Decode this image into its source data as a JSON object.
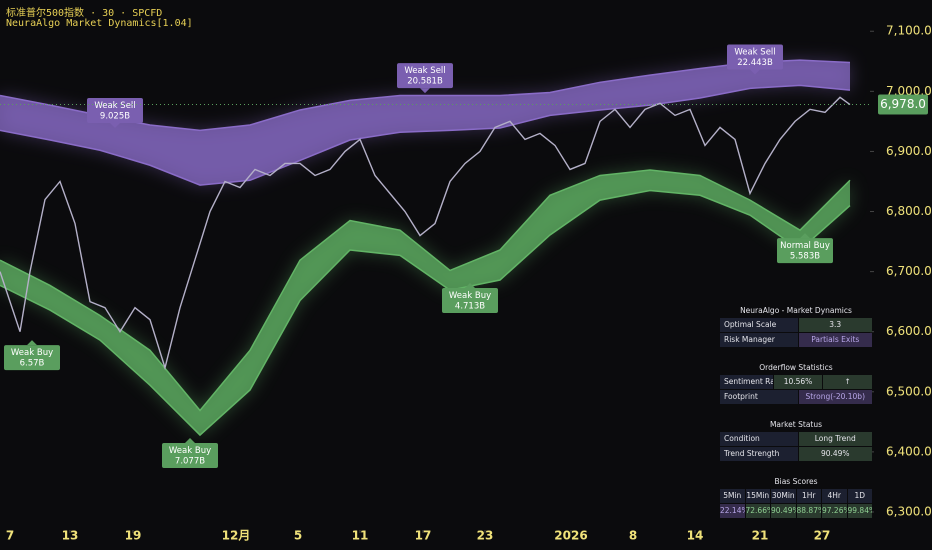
{
  "header": {
    "title": "标准普尔500指数 · 30 · SPCFD",
    "indicator": "NeuraAlgo Market Dynamics[1.04]"
  },
  "chart_data": {
    "type": "line",
    "x": [
      0,
      1,
      2,
      3,
      4.5,
      6,
      7.5,
      9,
      10.5,
      12,
      13.5,
      15,
      16.5,
      18,
      19.5,
      21,
      22.5,
      24,
      25.5,
      27,
      28.5,
      30,
      31.5,
      33,
      34.5,
      36,
      37.5,
      39,
      40.5,
      42,
      43.5,
      45,
      46.5,
      48,
      49.5,
      51,
      52.5,
      54,
      55.5,
      57,
      58.5,
      60,
      61.5,
      63,
      64.5,
      66,
      67.5,
      69,
      70.5,
      72,
      73.5,
      75,
      76.5,
      78,
      79.5,
      81,
      82.5,
      84,
      85
    ],
    "series": [
      {
        "color": "#b4b0c8",
        "values": [
          6700,
          6650,
          6600,
          6700,
          6820,
          6850,
          6780,
          6650,
          6640,
          6600,
          6640,
          6620,
          6540,
          6640,
          6720,
          6800,
          6850,
          6840,
          6870,
          6860,
          6880,
          6880,
          6860,
          6870,
          6900,
          6920,
          6860,
          6830,
          6800,
          6760,
          6780,
          6850,
          6880,
          6900,
          6940,
          6950,
          6920,
          6930,
          6910,
          6870,
          6880,
          6950,
          6970,
          6940,
          6970,
          6980,
          6960,
          6970,
          6910,
          6940,
          6920,
          6830,
          6880,
          6920,
          6950,
          6970,
          6965,
          6990,
          6978
        ]
      }
    ],
    "bands": [
      {
        "color": "#8a6cc8",
        "x": [
          0,
          5,
          10,
          15,
          20,
          25,
          30,
          35,
          40,
          45,
          50,
          55,
          60,
          65,
          70,
          75,
          80,
          85
        ],
        "upper": [
          6993,
          6977,
          6960,
          6944,
          6935,
          6944,
          6969,
          6985,
          6993,
          6993,
          6993,
          6998,
          7015,
          7027,
          7038,
          7048,
          7052,
          7048
        ],
        "lower": [
          6935,
          6919,
          6902,
          6877,
          6844,
          6852,
          6885,
          6919,
          6932,
          6935,
          6939,
          6960,
          6969,
          6977,
          6989,
          7005,
          7010,
          7002
        ]
      },
      {
        "color": "#62b466",
        "x": [
          0,
          5,
          10,
          15,
          20,
          25,
          30,
          35,
          40,
          45,
          50,
          55,
          60,
          65,
          70,
          75,
          80,
          85
        ],
        "upper": [
          6719,
          6677,
          6627,
          6569,
          6469,
          6569,
          6719,
          6785,
          6769,
          6702,
          6736,
          6827,
          6860,
          6869,
          6860,
          6819,
          6769,
          6852
        ],
        "lower": [
          6677,
          6636,
          6586,
          6511,
          6428,
          6503,
          6652,
          6736,
          6727,
          6669,
          6686,
          6761,
          6819,
          6835,
          6827,
          6794,
          6736,
          6810
        ]
      }
    ],
    "annotations": [
      {
        "text": "Weak Sell",
        "sub": "9.025B",
        "x": 11.5,
        "y": 6939,
        "color": "#7a5fb0",
        "side": "sell"
      },
      {
        "text": "Weak Sell",
        "sub": "20.581B",
        "x": 42.5,
        "y": 6997,
        "color": "#7a5fb0",
        "side": "sell"
      },
      {
        "text": "Weak Sell",
        "sub": "22.443B",
        "x": 75.5,
        "y": 7028,
        "color": "#7a5fb0",
        "side": "sell"
      },
      {
        "text": "Weak Buy",
        "sub": "6.57B",
        "x": 3.2,
        "y": 6586,
        "color": "#5a9e5e",
        "side": "buy"
      },
      {
        "text": "Weak Buy",
        "sub": "7.077B",
        "x": 19,
        "y": 6423,
        "color": "#5a9e5e",
        "side": "buy"
      },
      {
        "text": "Weak Buy",
        "sub": "4.713B",
        "x": 47,
        "y": 6681,
        "color": "#5a9e5e",
        "side": "buy"
      },
      {
        "text": "Normal Buy",
        "sub": "5.583B",
        "x": 80.5,
        "y": 6764,
        "color": "#5a9e5e",
        "side": "buy"
      }
    ],
    "last_price": {
      "value": 6978,
      "label": "6,978.0"
    },
    "xlim": [
      0,
      87
    ],
    "xticks": [
      {
        "value": 1,
        "label": "7"
      },
      {
        "value": 7,
        "label": "13"
      },
      {
        "value": 13.3,
        "label": "19"
      },
      {
        "value": 23.6,
        "label": "12月"
      },
      {
        "value": 29.8,
        "label": "5"
      },
      {
        "value": 36,
        "label": "11"
      },
      {
        "value": 42.3,
        "label": "17"
      },
      {
        "value": 48.5,
        "label": "23"
      },
      {
        "value": 57.1,
        "label": "2026"
      },
      {
        "value": 63.3,
        "label": "8"
      },
      {
        "value": 69.5,
        "label": "14"
      },
      {
        "value": 76,
        "label": "21"
      },
      {
        "value": 82.2,
        "label": "27"
      }
    ],
    "ylim": [
      6270,
      7152
    ],
    "yticks": [
      {
        "value": 6300,
        "label": "6,300.0"
      },
      {
        "value": 6400,
        "label": "6,400.0"
      },
      {
        "value": 6500,
        "label": "6,500.0"
      },
      {
        "value": 6600,
        "label": "6,600.0"
      },
      {
        "value": 6700,
        "label": "6,700.0"
      },
      {
        "value": 6800,
        "label": "6,800.0"
      },
      {
        "value": 6900,
        "label": "6,900.0"
      },
      {
        "value": 7000,
        "label": "7,000.0"
      },
      {
        "value": 7100,
        "label": "7,100.0"
      }
    ]
  },
  "panels": [
    {
      "title": "NeuraAlgo - Market Dynamics",
      "rows": [
        [
          "Optimal Scale",
          "3.3"
        ],
        [
          "Risk Manager",
          "Partials Exits"
        ]
      ]
    },
    {
      "title": "Orderflow Statistics",
      "rows": [
        [
          "Sentiment Range",
          "10.56%",
          "↑"
        ],
        [
          "Footprint",
          "Strong(-20.10b)"
        ]
      ]
    },
    {
      "title": "Market Status",
      "rows": [
        [
          "Condition",
          "Long Trend"
        ],
        [
          "Trend Strength",
          "90.49%"
        ]
      ]
    },
    {
      "title": "Bias Scores",
      "rows": [
        [
          "5Min",
          "15Min",
          "30Min",
          "1Hr",
          "4Hr",
          "1D"
        ],
        [
          "22.14%",
          "72.66%",
          "90.49%",
          "88.87%",
          "97.26%",
          "99.84%"
        ]
      ]
    }
  ]
}
